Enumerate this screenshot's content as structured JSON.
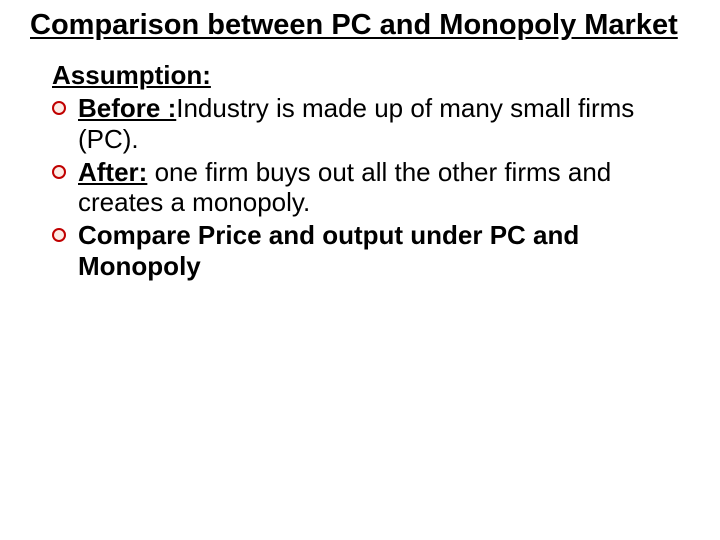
{
  "title": "Comparison between PC and Monopoly Market",
  "subhead": "Assumption:",
  "bullet_color": "#fdece6",
  "bullet_border": "#c00000",
  "items": [
    {
      "lead_text": "Before : ",
      "lead_underlined": "Before :",
      "rest": "Industry is made up of many small firms (PC)."
    },
    {
      "lead_text": "After: ",
      "lead_underlined": "After:",
      "rest": "one firm buys out all the other firms and creates a monopoly."
    },
    {
      "full_bold": "Compare Price and output under PC and Monopoly"
    }
  ]
}
